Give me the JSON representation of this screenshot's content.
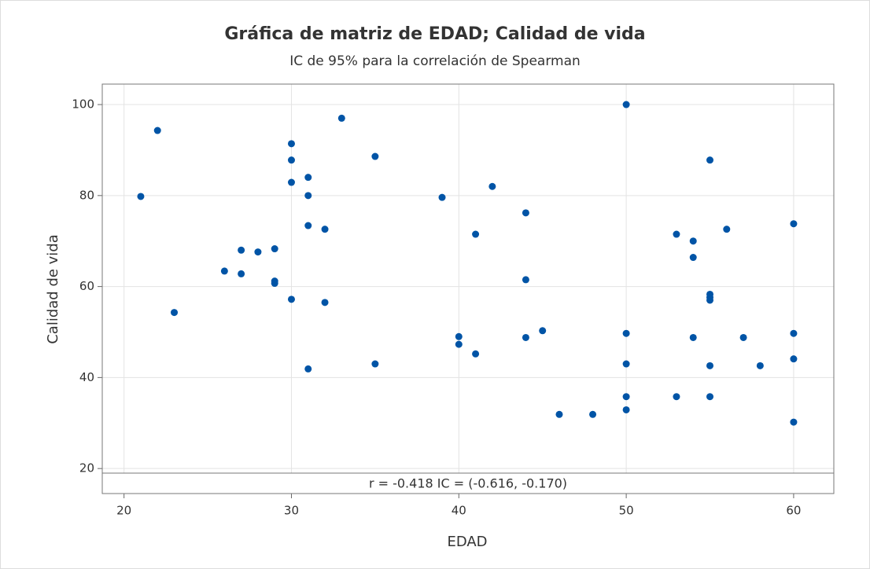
{
  "chart_data": {
    "type": "scatter",
    "title": "Gráfica de matriz de EDAD; Calidad de vida",
    "subtitle": "IC de 95% para la correlación de Spearman",
    "x_label": "EDAD",
    "y_label": "Calidad de vida",
    "annotation": "r = -0.418  IC = (-0.616, -0.170)",
    "color": "#0054a6",
    "grid": true,
    "xlim": [
      18.7,
      62.4
    ],
    "ylim": [
      14.5,
      104.5
    ],
    "xticks": [
      20,
      30,
      40,
      50,
      60
    ],
    "yticks": [
      20,
      40,
      60,
      80,
      100
    ],
    "x": [
      21,
      22,
      23,
      26,
      27,
      27,
      28,
      29,
      29,
      29,
      30,
      30,
      30,
      30,
      31,
      31,
      31,
      31,
      32,
      32,
      33,
      35,
      35,
      39,
      40,
      40,
      41,
      41,
      42,
      44,
      44,
      44,
      45,
      46,
      48,
      50,
      50,
      50,
      50,
      50,
      53,
      53,
      54,
      54,
      54,
      55,
      55,
      55,
      55,
      55,
      55,
      56,
      57,
      58,
      60,
      60,
      60,
      60
    ],
    "y": [
      79.8,
      94.3,
      54.3,
      63.4,
      68,
      62.8,
      67.6,
      68.3,
      61.2,
      60.7,
      91.4,
      87.8,
      82.9,
      57.2,
      84,
      80,
      73.4,
      41.9,
      72.6,
      56.5,
      97,
      88.6,
      43,
      79.6,
      49,
      47.3,
      45.2,
      71.5,
      82,
      76.2,
      61.5,
      48.8,
      50.3,
      31.9,
      31.9,
      100,
      49.7,
      43,
      35.8,
      32.9,
      71.5,
      35.8,
      70,
      66.4,
      48.8,
      87.8,
      58.3,
      57.6,
      57,
      42.6,
      35.8,
      72.6,
      48.8,
      42.6,
      73.8,
      49.7,
      44.1,
      30.2
    ]
  }
}
